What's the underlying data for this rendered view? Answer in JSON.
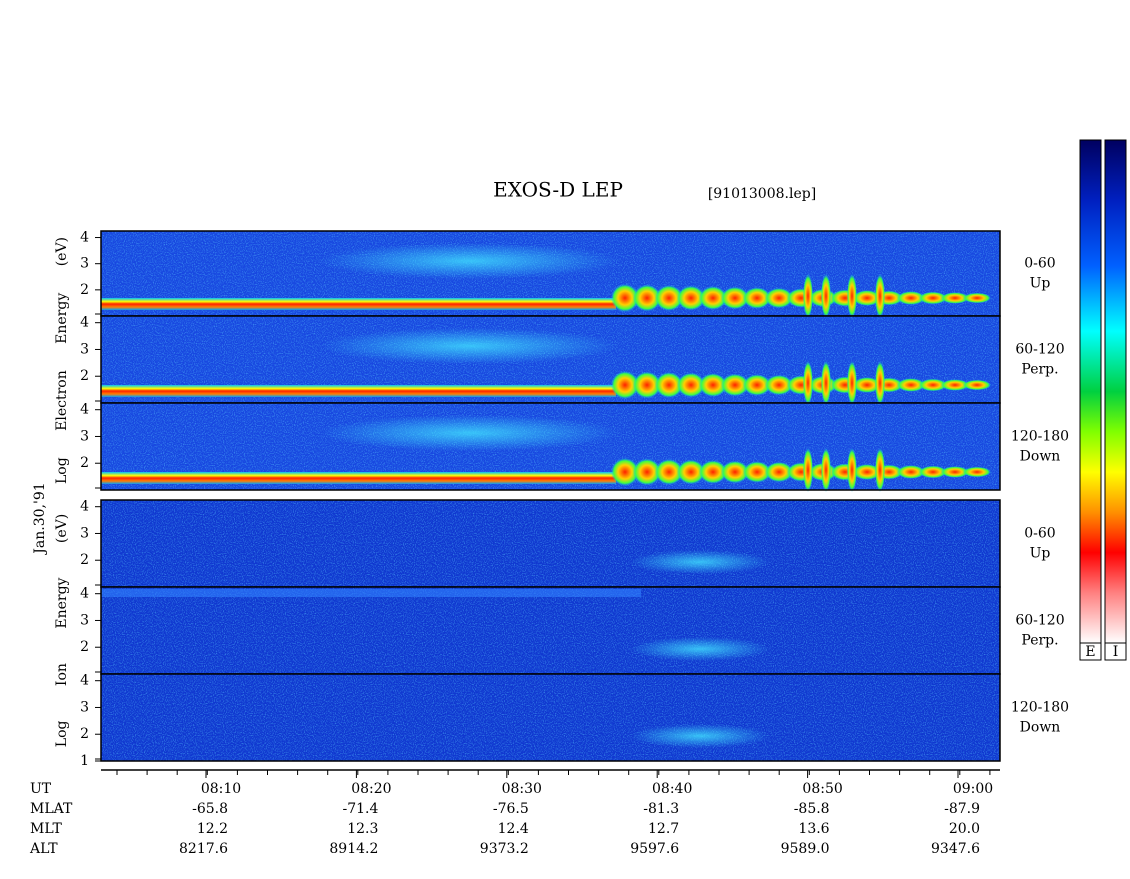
{
  "title": "EXOS-D LEP",
  "file": "[91013008.lep]",
  "date": "Jan.30,'91",
  "groups": [
    {
      "axis_label": "Log Electron Energy (eV)",
      "ylim": [
        1,
        4.25
      ],
      "panels": [
        {
          "label": [
            "0-60",
            "Up"
          ],
          "yticks": [
            2,
            3,
            4
          ]
        },
        {
          "label": [
            "60-120",
            "Perp."
          ],
          "yticks": [
            2,
            3,
            4
          ]
        },
        {
          "label": [
            "120-180",
            "Down"
          ],
          "yticks": [
            2,
            3,
            4
          ]
        }
      ]
    },
    {
      "axis_label": "Log Ion Energy (eV)",
      "ylim": [
        1,
        4.25
      ],
      "panels": [
        {
          "label": [
            "0-60",
            "Up"
          ],
          "yticks": [
            2,
            3,
            4
          ]
        },
        {
          "label": [
            "60-120",
            "Perp."
          ],
          "yticks": [
            2,
            3,
            4
          ]
        },
        {
          "label": [
            "120-180",
            "Down"
          ],
          "yticks": [
            1,
            2,
            3,
            4
          ]
        }
      ]
    }
  ],
  "time_axis": {
    "rows": [
      {
        "name": "UT",
        "values": [
          "08:10",
          "08:20",
          "08:30",
          "08:40",
          "08:50",
          "09:00"
        ]
      },
      {
        "name": "MLAT",
        "values": [
          "-65.8",
          "-71.4",
          "-76.5",
          "-81.3",
          "-85.8",
          "-87.9"
        ]
      },
      {
        "name": "MLT",
        "values": [
          "12.2",
          "12.3",
          "12.4",
          "12.7",
          "13.6",
          "20.0"
        ]
      },
      {
        "name": "ALT",
        "values": [
          "8217.6",
          "8914.2",
          "9373.2",
          "9597.6",
          "9589.0",
          "9347.6"
        ]
      }
    ]
  },
  "colorbars": [
    "E",
    "I"
  ]
}
